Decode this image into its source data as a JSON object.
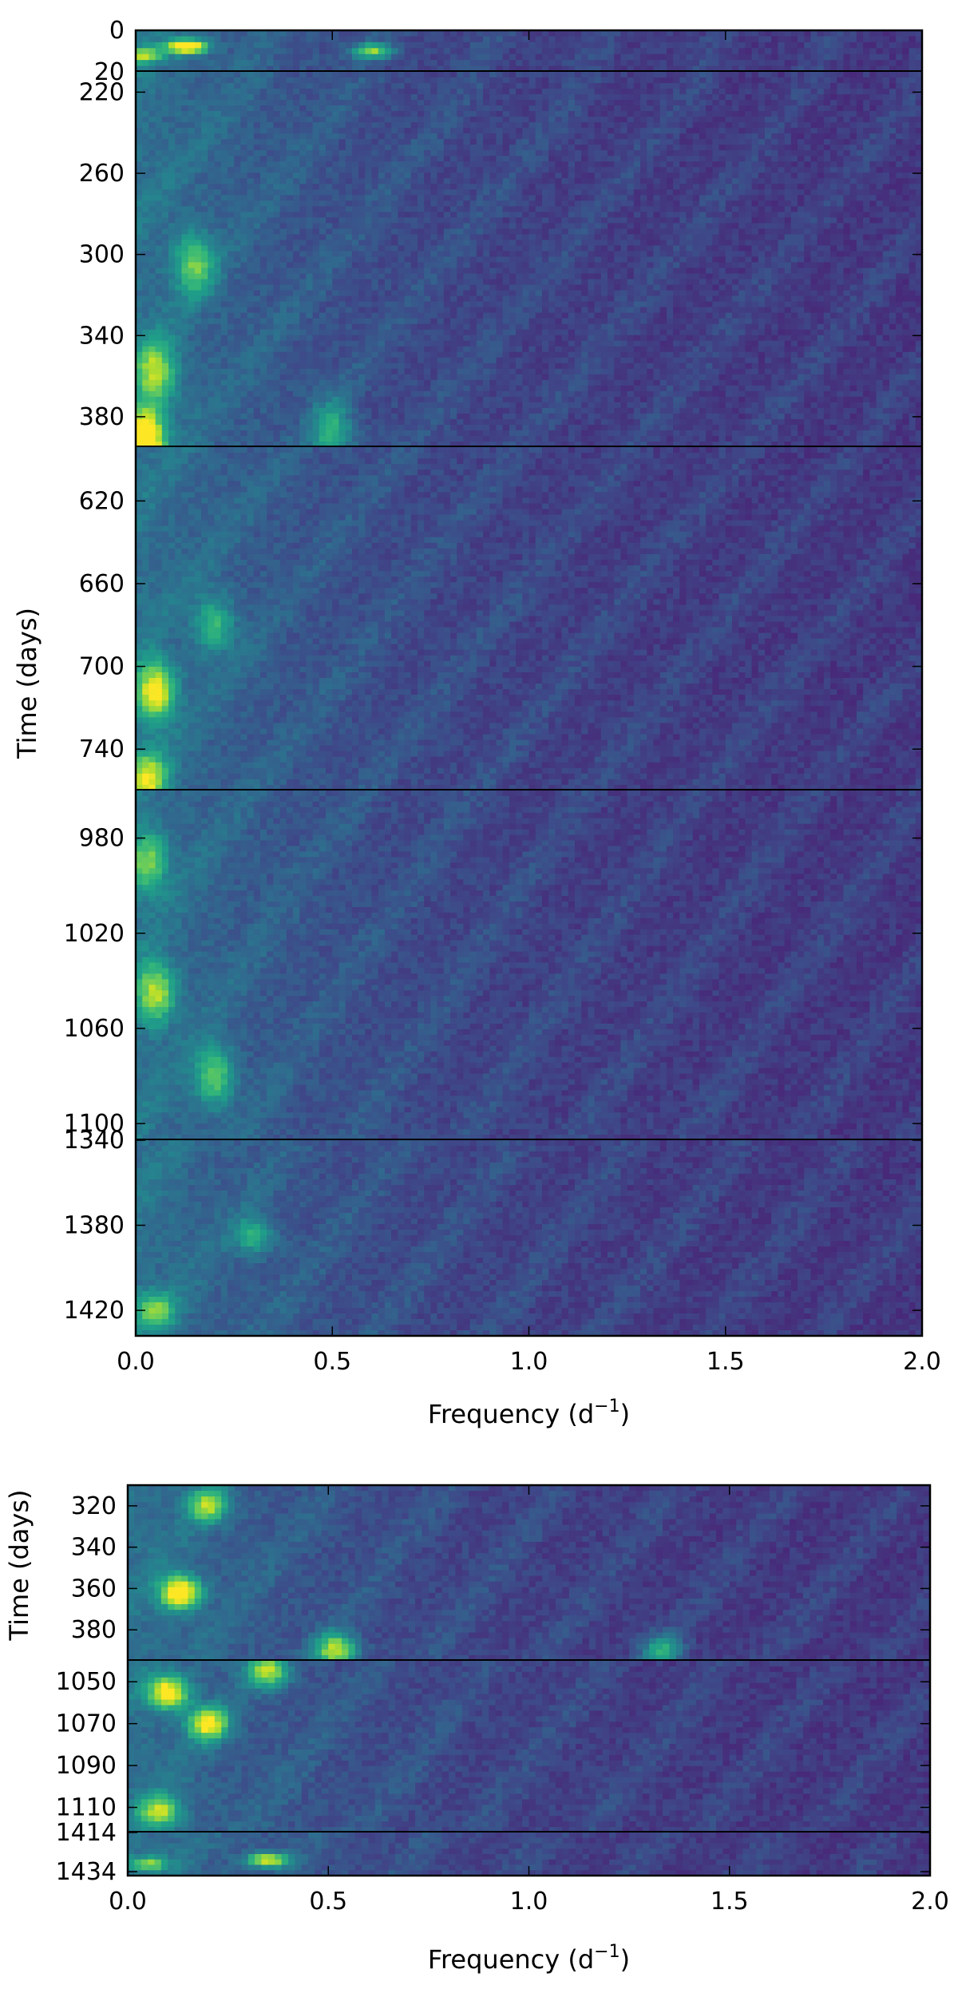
{
  "chart_data": [
    {
      "type": "heatmap",
      "title": "",
      "xlabel": "Frequency (d",
      "xlabel_superscript": "−1",
      "xlabel_suffix": ")",
      "ylabel": "Time (days)",
      "xlim": [
        0.0,
        2.0
      ],
      "x_tick_labels": [
        "0.0",
        "0.5",
        "1.0",
        "1.5",
        "2.0"
      ],
      "x_tick_values": [
        0.0,
        0.5,
        1.0,
        1.5,
        2.0
      ],
      "colormap": "viridis",
      "panels": [
        {
          "time_range": [
            0,
            20
          ],
          "y_tick_values": [
            0,
            20
          ],
          "y_tick_labels": [
            "0",
            "20"
          ],
          "hotspots": [
            [
              0.13,
              8,
              0.9
            ],
            [
              0.6,
              10,
              0.55
            ],
            [
              0.02,
              12,
              0.5
            ]
          ]
        },
        {
          "time_range": [
            210,
            395
          ],
          "y_tick_values": [
            220,
            260,
            300,
            340,
            380
          ],
          "y_tick_labels": [
            "220",
            "260",
            "300",
            "340",
            "380"
          ],
          "hotspots": [
            [
              0.02,
              392,
              1.0
            ],
            [
              0.15,
              305,
              0.45
            ],
            [
              0.05,
              358,
              0.55
            ],
            [
              0.5,
              388,
              0.4
            ]
          ]
        },
        {
          "time_range": [
            594,
            760
          ],
          "y_tick_values": [
            620,
            660,
            700,
            740
          ],
          "y_tick_labels": [
            "620",
            "660",
            "700",
            "740"
          ],
          "hotspots": [
            [
              0.05,
              712,
              0.7
            ],
            [
              0.03,
              755,
              0.6
            ],
            [
              0.2,
              680,
              0.35
            ]
          ]
        },
        {
          "time_range": [
            960,
            1107
          ],
          "y_tick_values": [
            980,
            1020,
            1060,
            1100
          ],
          "y_tick_labels": [
            "980",
            "1020",
            "1060",
            "1100"
          ],
          "hotspots": [
            [
              0.05,
              1045,
              0.55
            ],
            [
              0.2,
              1080,
              0.45
            ],
            [
              0.03,
              990,
              0.45
            ]
          ]
        },
        {
          "time_range": [
            1340,
            1432
          ],
          "y_tick_values": [
            1340,
            1380,
            1420
          ],
          "y_tick_labels": [
            "1340",
            "1380",
            "1420"
          ],
          "hotspots": [
            [
              0.05,
              1420,
              0.45
            ],
            [
              0.3,
              1385,
              0.35
            ]
          ]
        }
      ]
    },
    {
      "type": "heatmap",
      "title": "",
      "xlabel": "Frequency (d",
      "xlabel_superscript": "−1",
      "xlabel_suffix": ")",
      "ylabel": "Time (days)",
      "xlim": [
        0.0,
        2.0
      ],
      "x_tick_labels": [
        "0.0",
        "0.5",
        "1.0",
        "1.5",
        "2.0"
      ],
      "x_tick_values": [
        0.0,
        0.5,
        1.0,
        1.5,
        2.0
      ],
      "colormap": "viridis",
      "panels": [
        {
          "time_range": [
            310,
            395
          ],
          "y_tick_values": [
            320,
            340,
            360,
            380
          ],
          "y_tick_labels": [
            "320",
            "340",
            "360",
            "380"
          ],
          "hotspots": [
            [
              0.13,
              362,
              0.85
            ],
            [
              0.52,
              390,
              0.65
            ],
            [
              0.2,
              320,
              0.55
            ],
            [
              1.33,
              390,
              0.4
            ]
          ]
        },
        {
          "time_range": [
            1040,
            1122
          ],
          "y_tick_values": [
            1050,
            1070,
            1090,
            1110
          ],
          "y_tick_labels": [
            "1050",
            "1070",
            "1090",
            "1110"
          ],
          "hotspots": [
            [
              0.1,
              1055,
              0.75
            ],
            [
              0.2,
              1070,
              0.7
            ],
            [
              0.35,
              1045,
              0.6
            ],
            [
              0.08,
              1112,
              0.55
            ]
          ]
        },
        {
          "time_range": [
            1414,
            1436
          ],
          "y_tick_values": [
            1414,
            1434
          ],
          "y_tick_labels": [
            "1414",
            "1434"
          ],
          "hotspots": [
            [
              0.35,
              1428,
              0.7
            ],
            [
              0.05,
              1430,
              0.5
            ]
          ]
        }
      ]
    }
  ]
}
